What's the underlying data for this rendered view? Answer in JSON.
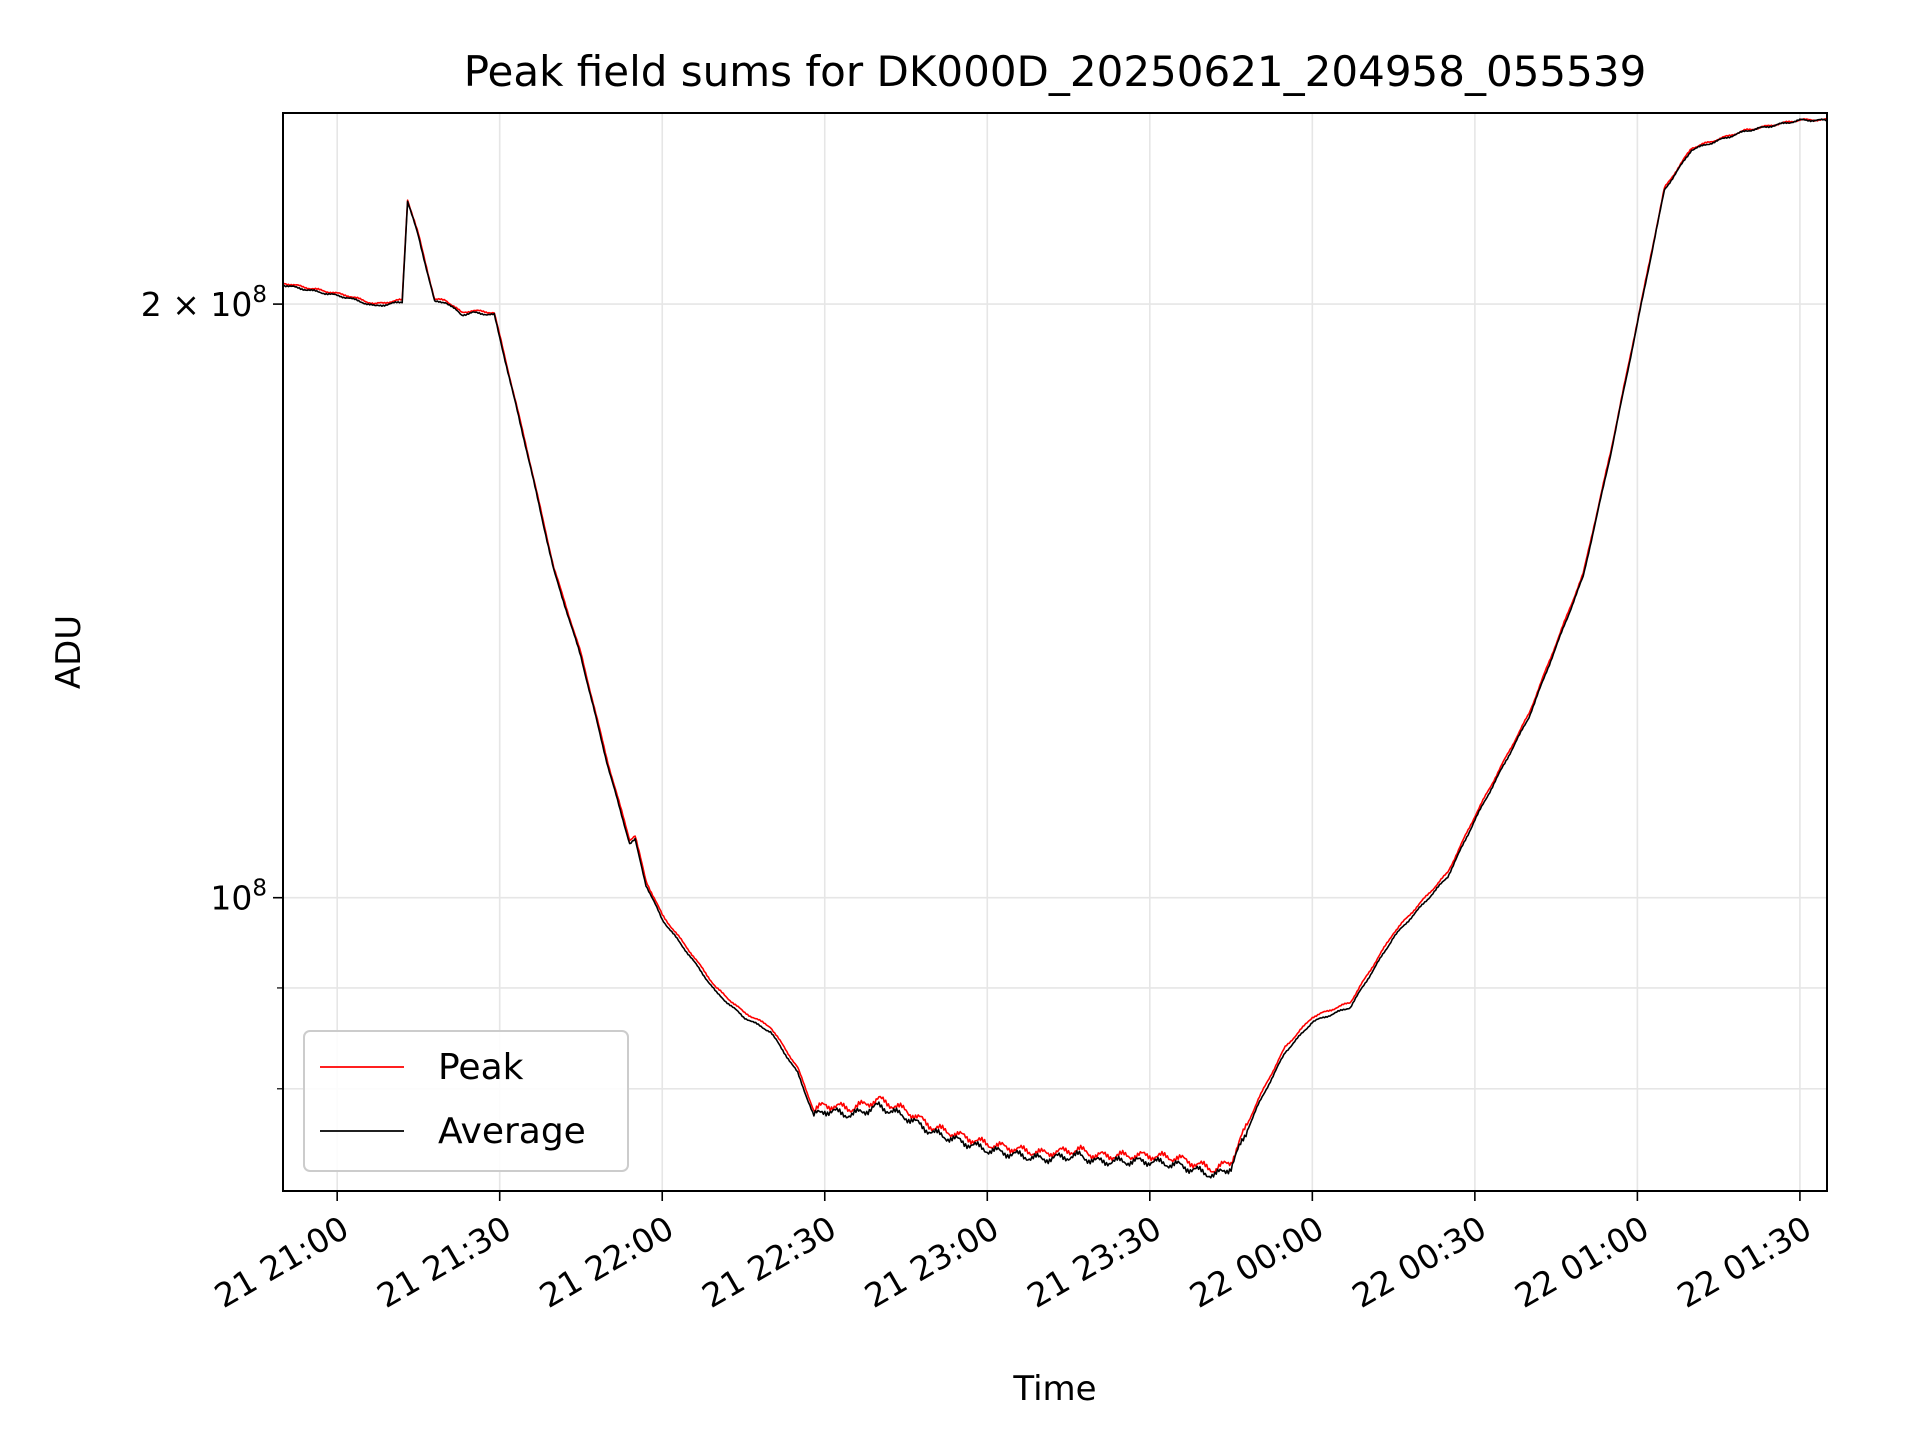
{
  "chart_data": {
    "type": "line",
    "title": "Peak field sums for DK000D_20250621_204958_055539",
    "xlabel": "Time",
    "ylabel": "ADU",
    "y_scale": "log",
    "grid": true,
    "legend_position": "lower-left",
    "xlim": [
      "2025-06-21 20:50",
      "2025-06-22 01:35"
    ],
    "ylim": [
      71000000,
      250000000
    ],
    "x_ticks": [
      {
        "t": "2025-06-21 21:00",
        "label": "21 21:00"
      },
      {
        "t": "2025-06-21 21:30",
        "label": "21 21:30"
      },
      {
        "t": "2025-06-21 22:00",
        "label": "21 22:00"
      },
      {
        "t": "2025-06-21 22:30",
        "label": "21 22:30"
      },
      {
        "t": "2025-06-21 23:00",
        "label": "21 23:00"
      },
      {
        "t": "2025-06-21 23:30",
        "label": "21 23:30"
      },
      {
        "t": "2025-06-22 00:00",
        "label": "22 00:00"
      },
      {
        "t": "2025-06-22 00:30",
        "label": "22 00:30"
      },
      {
        "t": "2025-06-22 01:00",
        "label": "22 01:00"
      },
      {
        "t": "2025-06-22 01:30",
        "label": "22 01:30"
      }
    ],
    "y_major_ticks": [
      {
        "value": 100000000,
        "base": "10",
        "exp": "8",
        "mant": ""
      },
      {
        "value": 200000000,
        "base": "10",
        "exp": "8",
        "mant": "2 × "
      }
    ],
    "y_minor_ticks": [
      80000000,
      90000000
    ],
    "series": [
      {
        "name": "Peak",
        "color": "#ff0000",
        "x": [
          "2025-06-21 20:50",
          "2025-06-21 21:02",
          "2025-06-21 21:07",
          "2025-06-21 21:12",
          "2025-06-21 21:13",
          "2025-06-21 21:15",
          "2025-06-21 21:18",
          "2025-06-21 21:20",
          "2025-06-21 21:23",
          "2025-06-21 21:25",
          "2025-06-21 21:29",
          "2025-06-21 21:35",
          "2025-06-21 21:40",
          "2025-06-21 21:45",
          "2025-06-21 21:50",
          "2025-06-21 21:54",
          "2025-06-21 21:55",
          "2025-06-21 21:57",
          "2025-06-21 22:00",
          "2025-06-21 22:05",
          "2025-06-21 22:10",
          "2025-06-21 22:15",
          "2025-06-21 22:20",
          "2025-06-21 22:25",
          "2025-06-21 22:28",
          "2025-06-21 22:30",
          "2025-06-21 22:35",
          "2025-06-21 22:40",
          "2025-06-21 22:45",
          "2025-06-21 22:50",
          "2025-06-21 23:00",
          "2025-06-21 23:10",
          "2025-06-21 23:17",
          "2025-06-21 23:20",
          "2025-06-21 23:30",
          "2025-06-21 23:35",
          "2025-06-21 23:42",
          "2025-06-21 23:45",
          "2025-06-21 23:50",
          "2025-06-21 23:55",
          "2025-06-22 00:00",
          "2025-06-22 00:07",
          "2025-06-22 00:15",
          "2025-06-22 00:25",
          "2025-06-22 00:30",
          "2025-06-22 00:40",
          "2025-06-22 00:50",
          "2025-06-22 00:55",
          "2025-06-22 01:00",
          "2025-06-22 01:05",
          "2025-06-22 01:10",
          "2025-06-22 01:20",
          "2025-06-22 01:30",
          "2025-06-22 01:35"
        ],
        "y": [
          205000000,
          202000000,
          200000000,
          201000000,
          226000000,
          217000000,
          201000000,
          201000000,
          198000000,
          198500000,
          198000000,
          169000000,
          147000000,
          133000000,
          117000000,
          107000000,
          107500000,
          102000000,
          98000000,
          94000000,
          90000000,
          87500000,
          86000000,
          82000000,
          78000000,
          78500000,
          78200000,
          79000000,
          78000000,
          76500000,
          75000000,
          74200000,
          74500000,
          74000000,
          74000000,
          73800000,
          72800000,
          73500000,
          79000000,
          84000000,
          87000000,
          88500000,
          96000000,
          103000000,
          110000000,
          124000000,
          146000000,
          168000000,
          196000000,
          229000000,
          240000000,
          245000000,
          248000000,
          248000000
        ]
      },
      {
        "name": "Average",
        "color": "#000000",
        "x": [
          "2025-06-21 20:50",
          "2025-06-21 21:02",
          "2025-06-21 21:07",
          "2025-06-21 21:12",
          "2025-06-21 21:13",
          "2025-06-21 21:15",
          "2025-06-21 21:18",
          "2025-06-21 21:20",
          "2025-06-21 21:23",
          "2025-06-21 21:25",
          "2025-06-21 21:29",
          "2025-06-21 21:35",
          "2025-06-21 21:40",
          "2025-06-21 21:45",
          "2025-06-21 21:50",
          "2025-06-21 21:54",
          "2025-06-21 21:55",
          "2025-06-21 21:57",
          "2025-06-21 22:00",
          "2025-06-21 22:05",
          "2025-06-21 22:10",
          "2025-06-21 22:15",
          "2025-06-21 22:20",
          "2025-06-21 22:25",
          "2025-06-21 22:28",
          "2025-06-21 22:30",
          "2025-06-21 22:35",
          "2025-06-21 22:40",
          "2025-06-21 22:45",
          "2025-06-21 22:50",
          "2025-06-21 23:00",
          "2025-06-21 23:10",
          "2025-06-21 23:17",
          "2025-06-21 23:20",
          "2025-06-21 23:30",
          "2025-06-21 23:35",
          "2025-06-21 23:42",
          "2025-06-21 23:45",
          "2025-06-21 23:50",
          "2025-06-21 23:55",
          "2025-06-22 00:00",
          "2025-06-22 00:07",
          "2025-06-22 00:15",
          "2025-06-22 00:25",
          "2025-06-22 00:30",
          "2025-06-22 00:40",
          "2025-06-22 00:50",
          "2025-06-22 00:55",
          "2025-06-22 01:00",
          "2025-06-22 01:05",
          "2025-06-22 01:10",
          "2025-06-22 01:20",
          "2025-06-22 01:30",
          "2025-06-22 01:35"
        ],
        "y": [
          204500000,
          201500000,
          199500000,
          200500000,
          225500000,
          216500000,
          200500000,
          200500000,
          197500000,
          198000000,
          197500000,
          168500000,
          146500000,
          132500000,
          116500000,
          106500000,
          107000000,
          101500000,
          97500000,
          93500000,
          89500000,
          87000000,
          85500000,
          81500000,
          77500000,
          78000000,
          77600000,
          78400000,
          77400000,
          76000000,
          74500000,
          73700000,
          74000000,
          73500000,
          73500000,
          73200000,
          72300000,
          73000000,
          78500000,
          83500000,
          86500000,
          88000000,
          95500000,
          102500000,
          109500000,
          123500000,
          145500000,
          167500000,
          195500000,
          228500000,
          239500000,
          244800000,
          247900000,
          247900000
        ]
      }
    ]
  }
}
